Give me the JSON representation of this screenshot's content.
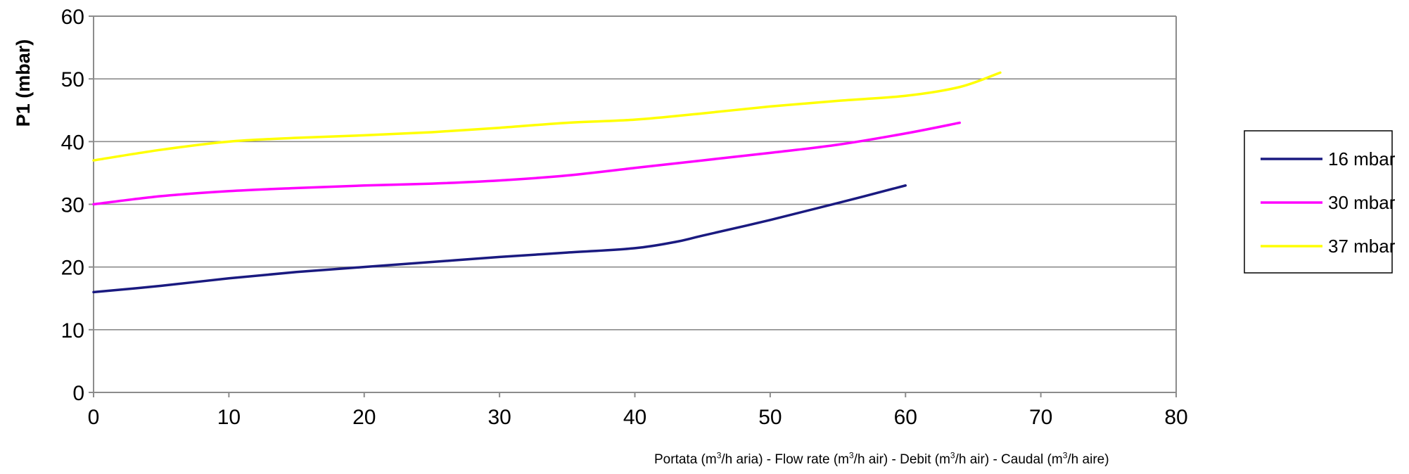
{
  "chart_data": {
    "type": "line",
    "title": "",
    "ylabel": "P1 (mbar)",
    "xlabel": "Portata (m3/h aria) - Flow rate (m3/h air) - Debit (m3/h air) - Caudal (m3/h aire)",
    "xlabel_parts": [
      {
        "text": "Portata (m",
        "sup": false
      },
      {
        "text": "3",
        "sup": true
      },
      {
        "text": "/h aria) - Flow rate (m",
        "sup": false
      },
      {
        "text": "3",
        "sup": true
      },
      {
        "text": "/h air) - Debit (m",
        "sup": false
      },
      {
        "text": "3",
        "sup": true
      },
      {
        "text": "/h air) - Caudal (m",
        "sup": false
      },
      {
        "text": "3",
        "sup": true
      },
      {
        "text": "/h aire)",
        "sup": false
      }
    ],
    "xlim": [
      0,
      80
    ],
    "ylim": [
      0,
      60
    ],
    "xticks": [
      0,
      10,
      20,
      30,
      40,
      50,
      60,
      70,
      80
    ],
    "yticks": [
      0,
      10,
      20,
      30,
      40,
      50,
      60
    ],
    "grid": "horizontal",
    "legend_position": "right",
    "series": [
      {
        "name": "16 mbar",
        "color": "#1a1a80",
        "points": [
          [
            0,
            16
          ],
          [
            5,
            17
          ],
          [
            10,
            18.2
          ],
          [
            15,
            19.2
          ],
          [
            20,
            20
          ],
          [
            25,
            20.8
          ],
          [
            30,
            21.6
          ],
          [
            35,
            22.3
          ],
          [
            40,
            23
          ],
          [
            43,
            24
          ],
          [
            45,
            25
          ],
          [
            50,
            27.5
          ],
          [
            55,
            30.2
          ],
          [
            60,
            33
          ]
        ]
      },
      {
        "name": "30 mbar",
        "color": "#ff00ff",
        "points": [
          [
            0,
            30
          ],
          [
            5,
            31.3
          ],
          [
            10,
            32.1
          ],
          [
            15,
            32.6
          ],
          [
            20,
            33
          ],
          [
            25,
            33.3
          ],
          [
            30,
            33.8
          ],
          [
            35,
            34.6
          ],
          [
            40,
            35.8
          ],
          [
            45,
            37
          ],
          [
            50,
            38.2
          ],
          [
            55,
            39.5
          ],
          [
            60,
            41.3
          ],
          [
            64,
            43
          ]
        ]
      },
      {
        "name": "37 mbar",
        "color": "#ffff00",
        "points": [
          [
            0,
            37
          ],
          [
            5,
            38.7
          ],
          [
            10,
            40
          ],
          [
            15,
            40.6
          ],
          [
            20,
            41
          ],
          [
            25,
            41.5
          ],
          [
            30,
            42.2
          ],
          [
            35,
            43
          ],
          [
            40,
            43.5
          ],
          [
            45,
            44.5
          ],
          [
            50,
            45.6
          ],
          [
            55,
            46.5
          ],
          [
            60,
            47.3
          ],
          [
            64,
            48.7
          ],
          [
            67,
            51
          ]
        ]
      }
    ]
  }
}
